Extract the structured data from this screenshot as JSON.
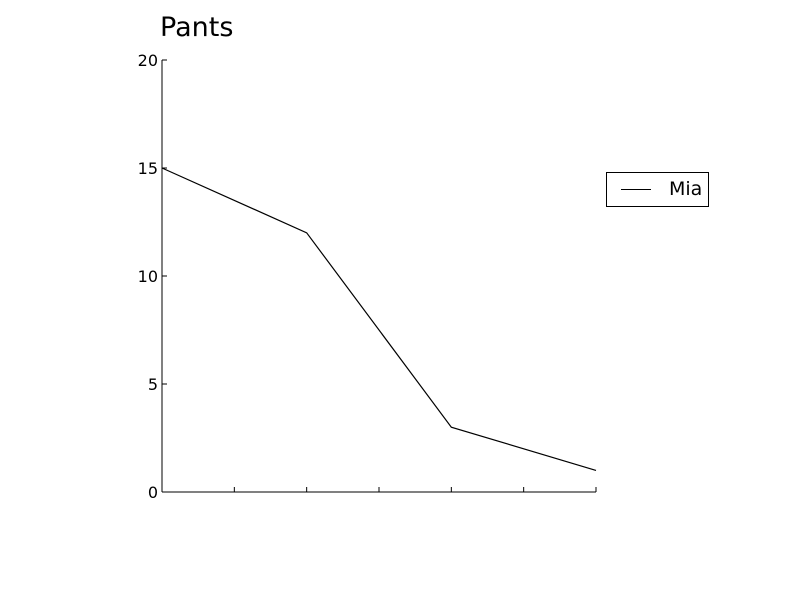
{
  "chart_data": {
    "type": "line",
    "title": "Pants",
    "xlabel": "",
    "ylabel": "",
    "x": [
      0,
      1,
      2,
      3
    ],
    "ylim": [
      0,
      20
    ],
    "yticks": [
      "0",
      "5",
      "10",
      "15",
      "20"
    ],
    "xticks_count": 7,
    "grid": false,
    "legend": "right",
    "series": [
      {
        "name": "Mia",
        "values": [
          15,
          12,
          3,
          1
        ],
        "color": "#000000"
      }
    ]
  }
}
